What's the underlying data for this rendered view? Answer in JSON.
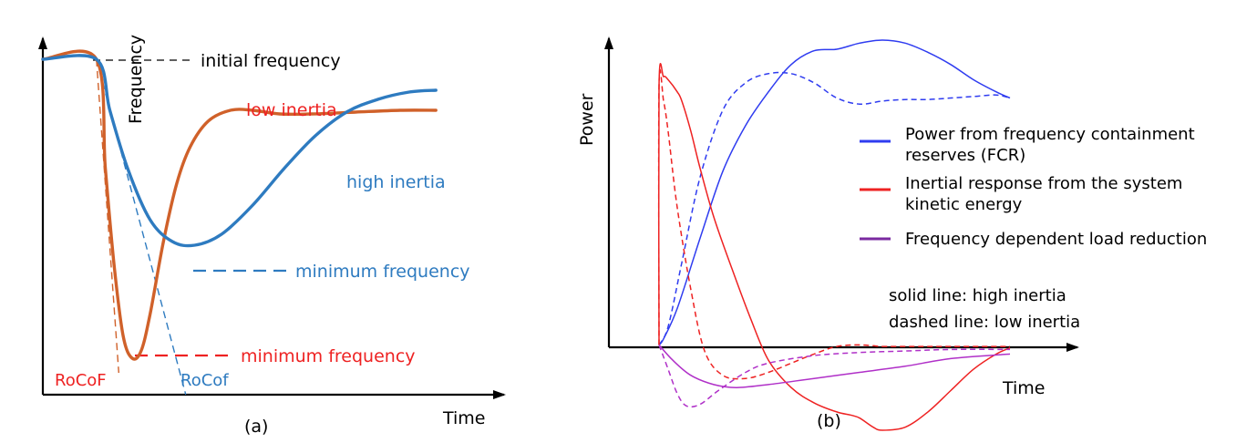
{
  "colors": {
    "orange": "#d0612a",
    "blue_a": "#2e7bc0",
    "red": "#ee2222",
    "blue_b": "#2f3cf0",
    "purple": "#b030c8",
    "legend_purple": "#7a2aa0",
    "axis": "#000000"
  },
  "chart_data": [
    {
      "type": "line",
      "panel_label": "(a)",
      "xlabel": "Time",
      "ylabel": "Frequency",
      "annotations": {
        "initial": "initial frequency",
        "low_inertia": "low inertia",
        "high_inertia": "high inertia",
        "min_freq_high": "minimum frequency",
        "min_freq_low": "minimum frequency",
        "rocof_low": "RoCoF",
        "rocof_high": "RoCof"
      },
      "x_range": [
        0,
        100
      ],
      "y_range": [
        0,
        100
      ],
      "series": [
        {
          "name": "low inertia",
          "color": "#d0612a",
          "style": "solid",
          "points": [
            [
              0,
              92
            ],
            [
              12,
              92
            ],
            [
              14,
              62
            ],
            [
              16,
              35
            ],
            [
              18,
              16
            ],
            [
              20,
              10
            ],
            [
              22,
              12
            ],
            [
              24,
              22
            ],
            [
              27,
              42
            ],
            [
              30,
              58
            ],
            [
              33,
              68
            ],
            [
              37,
              75
            ],
            [
              42,
              78
            ],
            [
              47,
              78
            ],
            [
              53,
              77
            ],
            [
              60,
              77
            ],
            [
              70,
              77.5
            ],
            [
              80,
              78
            ],
            [
              88,
              78
            ]
          ]
        },
        {
          "name": "high inertia",
          "color": "#2e7bc0",
          "style": "solid",
          "points": [
            [
              0,
              92
            ],
            [
              12,
              92
            ],
            [
              15,
              78
            ],
            [
              19,
              62
            ],
            [
              24,
              48
            ],
            [
              29,
              42
            ],
            [
              34,
              41
            ],
            [
              40,
              44
            ],
            [
              47,
              52
            ],
            [
              54,
              62
            ],
            [
              61,
              71
            ],
            [
              68,
              77.5
            ],
            [
              75,
              81
            ],
            [
              82,
              83
            ],
            [
              88,
              83.5
            ]
          ]
        }
      ],
      "tangents": [
        {
          "name": "RoCoF",
          "color": "#d0612a",
          "points": [
            [
              12,
              92
            ],
            [
              17,
              6
            ]
          ]
        },
        {
          "name": "RoCof",
          "color": "#2e7bc0",
          "points": [
            [
              12,
              92
            ],
            [
              32,
              0
            ]
          ]
        }
      ]
    },
    {
      "type": "line",
      "panel_label": "(b)",
      "xlabel": "Time",
      "ylabel": "Power",
      "legend": [
        {
          "label1": "Power from frequency containment",
          "label2": "reserves (FCR)",
          "color": "#2f3cf0"
        },
        {
          "label1": "Inertial response from the system",
          "label2": "kinetic energy",
          "color": "#ee2222"
        },
        {
          "label1": "Frequency dependent load reduction",
          "label2": "",
          "color": "#7a2aa0"
        }
      ],
      "notes": [
        "solid line: high inertia",
        "dashed line: low inertia"
      ],
      "x_range": [
        0,
        100
      ],
      "y_range": [
        -30,
        100
      ],
      "series": [
        {
          "name": "FCR high inertia",
          "color": "#2f3cf0",
          "style": "solid",
          "points": [
            [
              11,
              0
            ],
            [
              12,
              2
            ],
            [
              15,
              12
            ],
            [
              20,
              35
            ],
            [
              25,
              57
            ],
            [
              30,
              72
            ],
            [
              35,
              83
            ],
            [
              40,
              92
            ],
            [
              45,
              96.5
            ],
            [
              50,
              97
            ],
            [
              55,
              99
            ],
            [
              60,
              100
            ],
            [
              65,
              99
            ],
            [
              70,
              96
            ],
            [
              75,
              92
            ],
            [
              80,
              87
            ],
            [
              85,
              83
            ],
            [
              88,
              81
            ]
          ]
        },
        {
          "name": "FCR low inertia",
          "color": "#2f3cf0",
          "style": "dashed",
          "points": [
            [
              11,
              0
            ],
            [
              13,
              6
            ],
            [
              16,
              27
            ],
            [
              20,
              55
            ],
            [
              25,
              77
            ],
            [
              30,
              86
            ],
            [
              35,
              89
            ],
            [
              40,
              89
            ],
            [
              45,
              86
            ],
            [
              50,
              81
            ],
            [
              55,
              79
            ],
            [
              60,
              80
            ],
            [
              65,
              80.5
            ],
            [
              70,
              80.5
            ],
            [
              75,
              81
            ],
            [
              80,
              81.5
            ],
            [
              85,
              82
            ],
            [
              88,
              81
            ]
          ]
        },
        {
          "name": "Inertial high inertia",
          "color": "#ee2222",
          "style": "solid",
          "points": [
            [
              11,
              0
            ],
            [
              11,
              85
            ],
            [
              12,
              88
            ],
            [
              13,
              87
            ],
            [
              15,
              83
            ],
            [
              16,
              80
            ],
            [
              18,
              70
            ],
            [
              20,
              58
            ],
            [
              23,
              42
            ],
            [
              27,
              25
            ],
            [
              31,
              9
            ],
            [
              35,
              -5
            ],
            [
              40,
              -14
            ],
            [
              45,
              -19
            ],
            [
              50,
              -22
            ],
            [
              53,
              -23
            ],
            [
              55,
              -24
            ],
            [
              58,
              -27
            ],
            [
              60,
              -28
            ],
            [
              65,
              -27
            ],
            [
              70,
              -22
            ],
            [
              75,
              -15
            ],
            [
              80,
              -8
            ],
            [
              85,
              -3
            ],
            [
              88,
              -1
            ]
          ]
        },
        {
          "name": "Inertial low inertia",
          "color": "#ee2222",
          "style": "dashed",
          "points": [
            [
              11,
              0
            ],
            [
              11,
              85
            ],
            [
              12,
              80
            ],
            [
              13,
              70
            ],
            [
              15,
              45
            ],
            [
              18,
              18
            ],
            [
              21,
              -2
            ],
            [
              25,
              -10
            ],
            [
              30,
              -11
            ],
            [
              35,
              -9
            ],
            [
              40,
              -6
            ],
            [
              45,
              -3
            ],
            [
              50,
              -0.5
            ],
            [
              55,
              0
            ],
            [
              60,
              -0.5
            ],
            [
              65,
              -0.5
            ],
            [
              75,
              -0.5
            ],
            [
              88,
              -0.5
            ]
          ]
        },
        {
          "name": "Load high inertia",
          "color": "#b030c8",
          "style": "solid",
          "points": [
            [
              11,
              0
            ],
            [
              14,
              -5
            ],
            [
              18,
              -10
            ],
            [
              23,
              -13
            ],
            [
              28,
              -14
            ],
            [
              35,
              -13
            ],
            [
              45,
              -11
            ],
            [
              55,
              -9
            ],
            [
              65,
              -7
            ],
            [
              75,
              -4.5
            ],
            [
              88,
              -3
            ]
          ]
        },
        {
          "name": "Load low inertia",
          "color": "#b030c8",
          "style": "dashed",
          "points": [
            [
              11,
              0
            ],
            [
              13,
              -8
            ],
            [
              15,
              -16
            ],
            [
              17,
              -20
            ],
            [
              20,
              -19.5
            ],
            [
              24,
              -15
            ],
            [
              30,
              -9
            ],
            [
              35,
              -6
            ],
            [
              45,
              -3.5
            ],
            [
              55,
              -2.5
            ],
            [
              65,
              -2
            ],
            [
              75,
              -1.5
            ],
            [
              88,
              -1.5
            ]
          ]
        }
      ]
    }
  ]
}
